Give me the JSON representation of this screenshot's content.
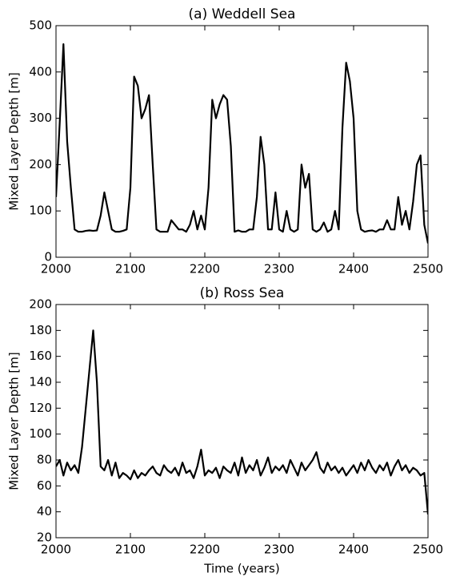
{
  "chart_data": [
    {
      "type": "line",
      "title": "(a) Weddell Sea",
      "ylabel": "Mixed Layer Depth [m]",
      "color": "#000000",
      "x": [
        2000,
        2005,
        2010,
        2015,
        2020,
        2025,
        2030,
        2035,
        2040,
        2045,
        2050,
        2055,
        2060,
        2065,
        2070,
        2075,
        2080,
        2085,
        2090,
        2095,
        2100,
        2105,
        2110,
        2115,
        2120,
        2125,
        2130,
        2135,
        2140,
        2145,
        2150,
        2155,
        2160,
        2165,
        2170,
        2175,
        2180,
        2185,
        2190,
        2195,
        2200,
        2205,
        2210,
        2215,
        2220,
        2225,
        2230,
        2235,
        2240,
        2245,
        2250,
        2255,
        2260,
        2265,
        2270,
        2275,
        2280,
        2285,
        2290,
        2295,
        2300,
        2305,
        2310,
        2315,
        2320,
        2325,
        2330,
        2335,
        2340,
        2345,
        2350,
        2355,
        2360,
        2365,
        2370,
        2375,
        2380,
        2385,
        2390,
        2395,
        2400,
        2405,
        2410,
        2415,
        2420,
        2425,
        2430,
        2435,
        2440,
        2445,
        2450,
        2455,
        2460,
        2465,
        2470,
        2475,
        2480,
        2485,
        2490,
        2495,
        2500
      ],
      "values": [
        130,
        290,
        460,
        250,
        150,
        60,
        55,
        55,
        57,
        58,
        57,
        58,
        90,
        140,
        100,
        60,
        55,
        55,
        57,
        60,
        150,
        390,
        370,
        300,
        320,
        350,
        200,
        60,
        55,
        55,
        55,
        80,
        70,
        60,
        60,
        55,
        70,
        100,
        60,
        90,
        60,
        150,
        340,
        300,
        330,
        350,
        340,
        240,
        55,
        58,
        55,
        55,
        60,
        60,
        130,
        260,
        200,
        60,
        60,
        140,
        60,
        55,
        100,
        60,
        55,
        60,
        200,
        150,
        180,
        60,
        55,
        60,
        75,
        55,
        60,
        100,
        60,
        280,
        420,
        380,
        300,
        100,
        60,
        55,
        57,
        58,
        55,
        60,
        60,
        80,
        60,
        60,
        130,
        70,
        100,
        60,
        120,
        200,
        220,
        70,
        30
      ],
      "xlim": [
        2000,
        2500
      ],
      "xticks": [
        2000,
        2100,
        2200,
        2300,
        2400,
        2500
      ],
      "ylim": [
        0,
        500
      ],
      "yticks": [
        0,
        100,
        200,
        300,
        400,
        500
      ]
    },
    {
      "type": "line",
      "title": "(b) Ross Sea",
      "ylabel": "Mixed Layer Depth [m]",
      "xlabel": "Time (years)",
      "color": "#000000",
      "x": [
        2000,
        2005,
        2010,
        2015,
        2020,
        2025,
        2030,
        2035,
        2040,
        2045,
        2050,
        2055,
        2060,
        2065,
        2070,
        2075,
        2080,
        2085,
        2090,
        2095,
        2100,
        2105,
        2110,
        2115,
        2120,
        2125,
        2130,
        2135,
        2140,
        2145,
        2150,
        2155,
        2160,
        2165,
        2170,
        2175,
        2180,
        2185,
        2190,
        2195,
        2200,
        2205,
        2210,
        2215,
        2220,
        2225,
        2230,
        2235,
        2240,
        2245,
        2250,
        2255,
        2260,
        2265,
        2270,
        2275,
        2280,
        2285,
        2290,
        2295,
        2300,
        2305,
        2310,
        2315,
        2320,
        2325,
        2330,
        2335,
        2340,
        2345,
        2350,
        2355,
        2360,
        2365,
        2370,
        2375,
        2380,
        2385,
        2390,
        2395,
        2400,
        2405,
        2410,
        2415,
        2420,
        2425,
        2430,
        2435,
        2440,
        2445,
        2450,
        2455,
        2460,
        2465,
        2470,
        2475,
        2480,
        2485,
        2490,
        2495,
        2500
      ],
      "values": [
        75,
        80,
        68,
        78,
        72,
        76,
        70,
        90,
        120,
        150,
        180,
        140,
        75,
        72,
        80,
        68,
        78,
        66,
        70,
        68,
        65,
        72,
        66,
        70,
        68,
        72,
        75,
        70,
        68,
        76,
        72,
        70,
        74,
        68,
        78,
        70,
        72,
        66,
        75,
        88,
        68,
        72,
        70,
        74,
        66,
        75,
        72,
        70,
        78,
        68,
        82,
        70,
        76,
        72,
        80,
        68,
        74,
        82,
        70,
        75,
        72,
        76,
        70,
        80,
        74,
        68,
        78,
        72,
        76,
        80,
        86,
        74,
        70,
        78,
        72,
        75,
        70,
        74,
        68,
        72,
        76,
        70,
        78,
        72,
        80,
        74,
        70,
        76,
        72,
        78,
        68,
        75,
        80,
        72,
        76,
        70,
        74,
        72,
        68,
        70,
        38
      ],
      "xlim": [
        2000,
        2500
      ],
      "xticks": [
        2000,
        2100,
        2200,
        2300,
        2400,
        2500
      ],
      "ylim": [
        20,
        200
      ],
      "yticks": [
        20,
        40,
        60,
        80,
        100,
        120,
        140,
        160,
        180,
        200
      ]
    }
  ]
}
